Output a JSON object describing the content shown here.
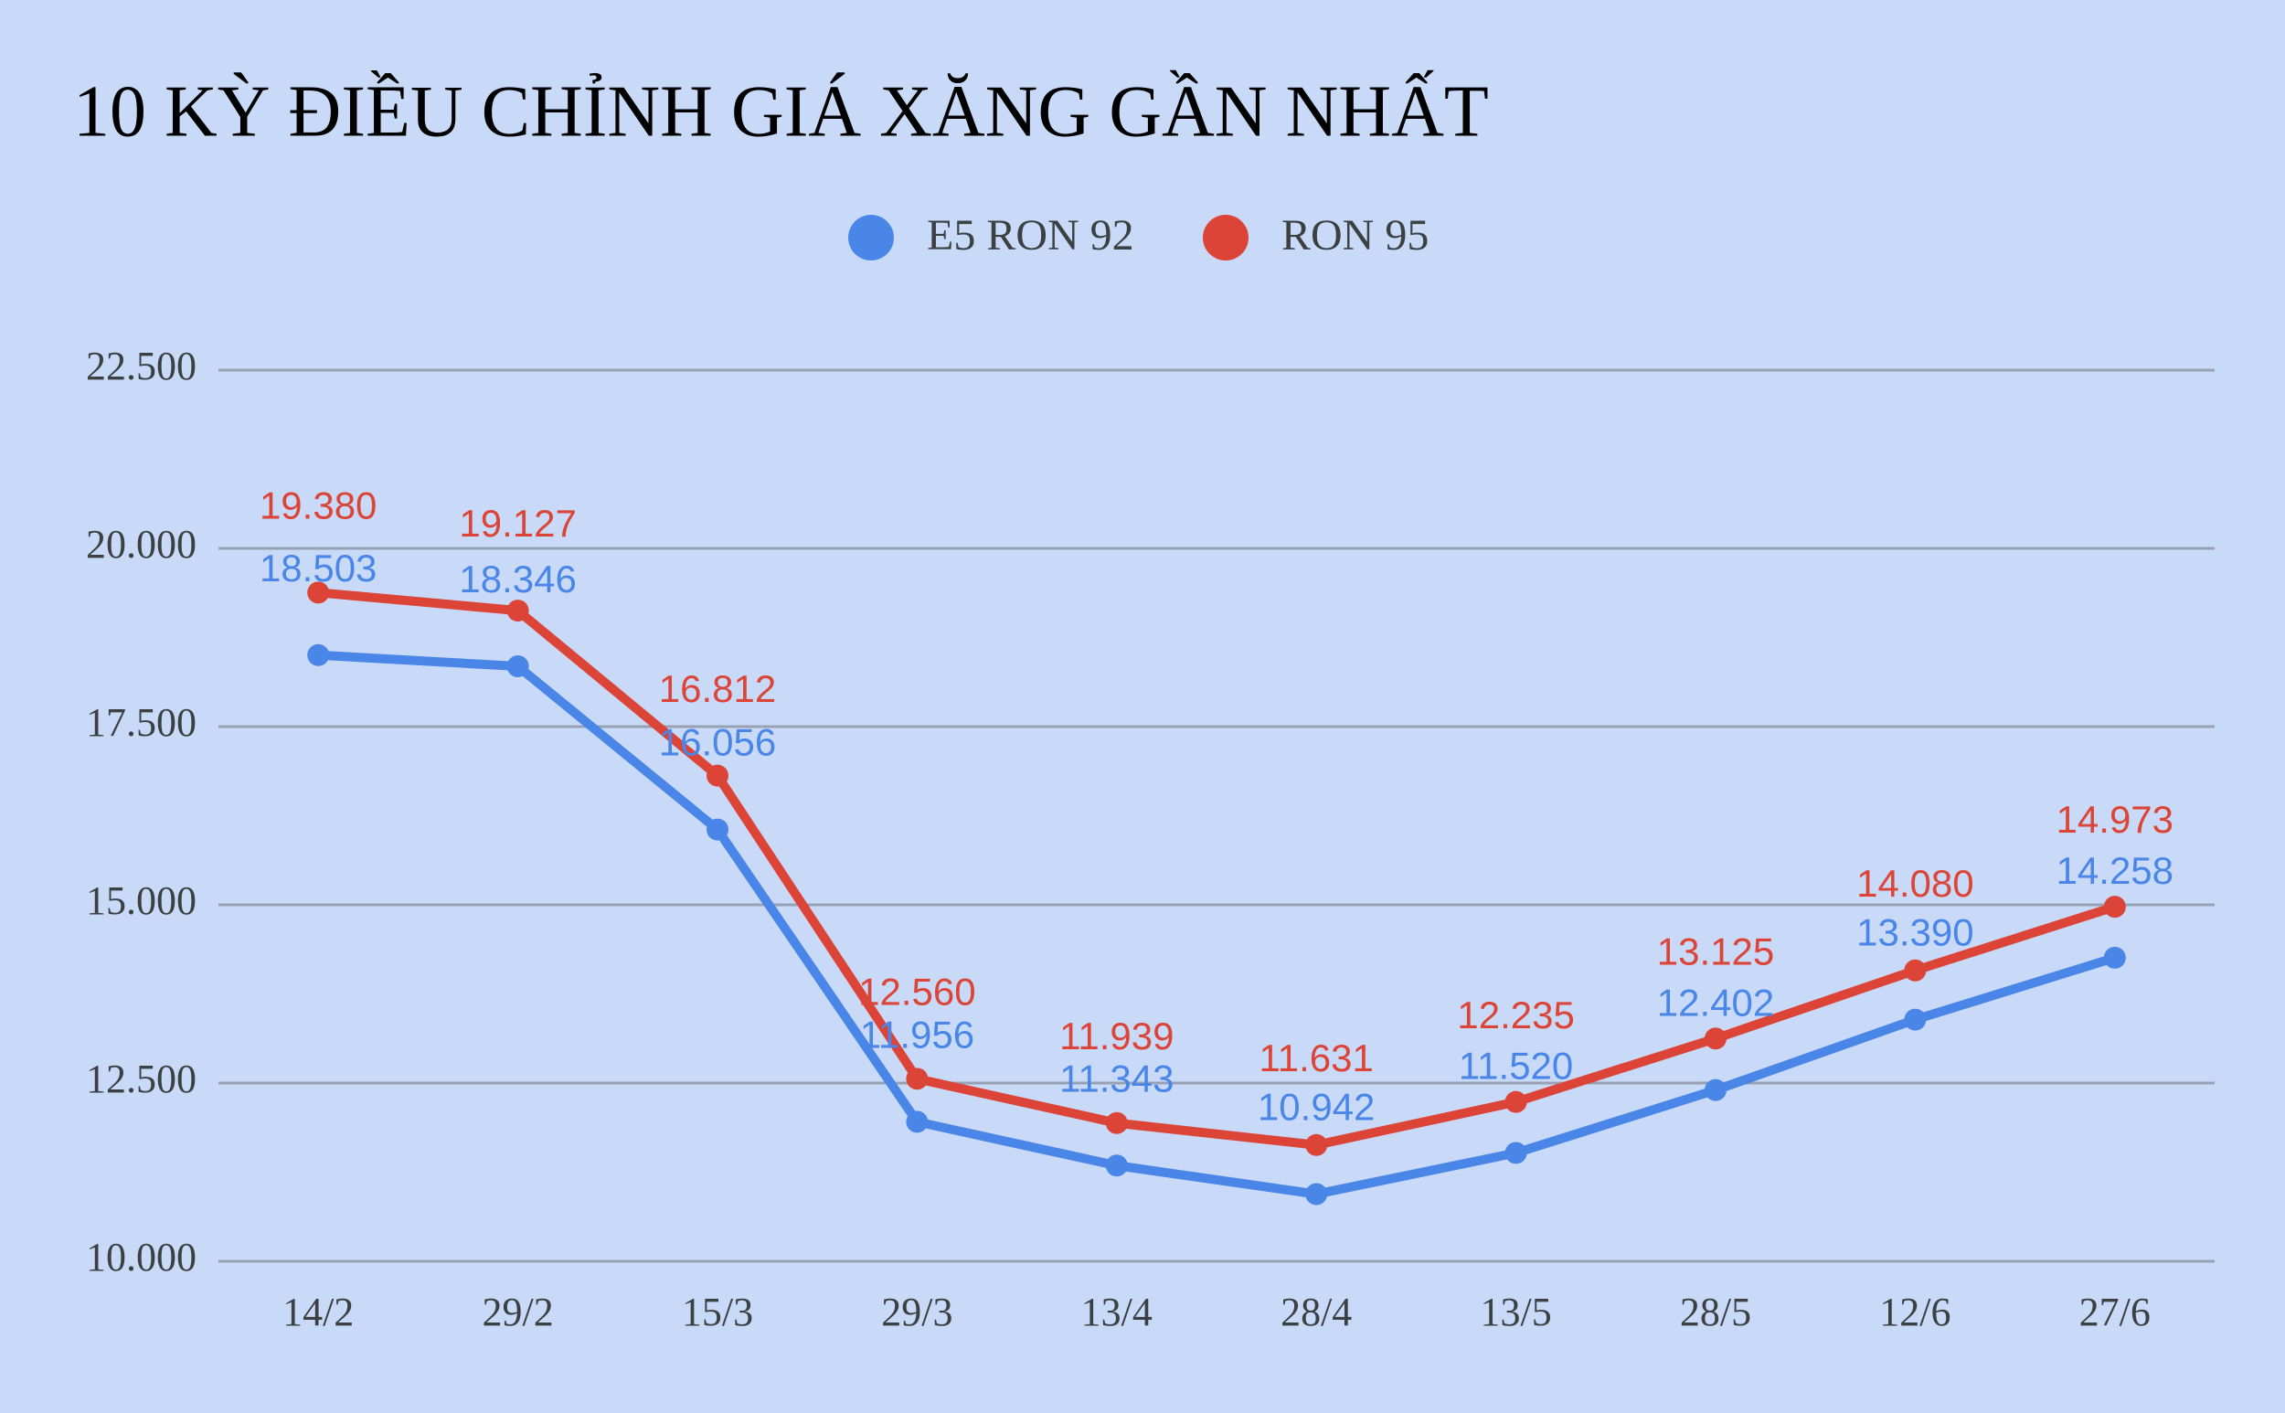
{
  "chart_data": {
    "type": "line",
    "title": "10 KỲ ĐIỀU CHỈNH GIÁ XĂNG GẦN NHẤT",
    "categories": [
      "14/2",
      "29/2",
      "15/3",
      "29/3",
      "13/4",
      "28/4",
      "13/5",
      "28/5",
      "12/6",
      "27/6"
    ],
    "series": [
      {
        "name": "E5 RON 92",
        "color": "#4a86e8",
        "values": [
          18503,
          18346,
          16056,
          11956,
          11343,
          10942,
          11520,
          12402,
          13390,
          14258
        ],
        "value_labels": [
          "18.503",
          "18.346",
          "16.056",
          "11.956",
          "11.343",
          "10.942",
          "11.520",
          "12.402",
          "13.390",
          "14.258"
        ]
      },
      {
        "name": "RON 95",
        "color": "#db4437",
        "values": [
          19380,
          19127,
          16812,
          12560,
          11939,
          11631,
          12235,
          13125,
          14080,
          14973
        ],
        "value_labels": [
          "19.380",
          "19.127",
          "16.812",
          "12.560",
          "11.939",
          "11.631",
          "12.235",
          "13.125",
          "14.080",
          "14.973"
        ]
      }
    ],
    "ylim": [
      10000,
      22500
    ],
    "yticks": [
      {
        "value": 10000,
        "label": "10.000"
      },
      {
        "value": 12500,
        "label": "12.500"
      },
      {
        "value": 15000,
        "label": "15.000"
      },
      {
        "value": 17500,
        "label": "17.500"
      },
      {
        "value": 20000,
        "label": "20.000"
      },
      {
        "value": 22500,
        "label": "22.500"
      }
    ],
    "grid": true,
    "legend": "top"
  }
}
